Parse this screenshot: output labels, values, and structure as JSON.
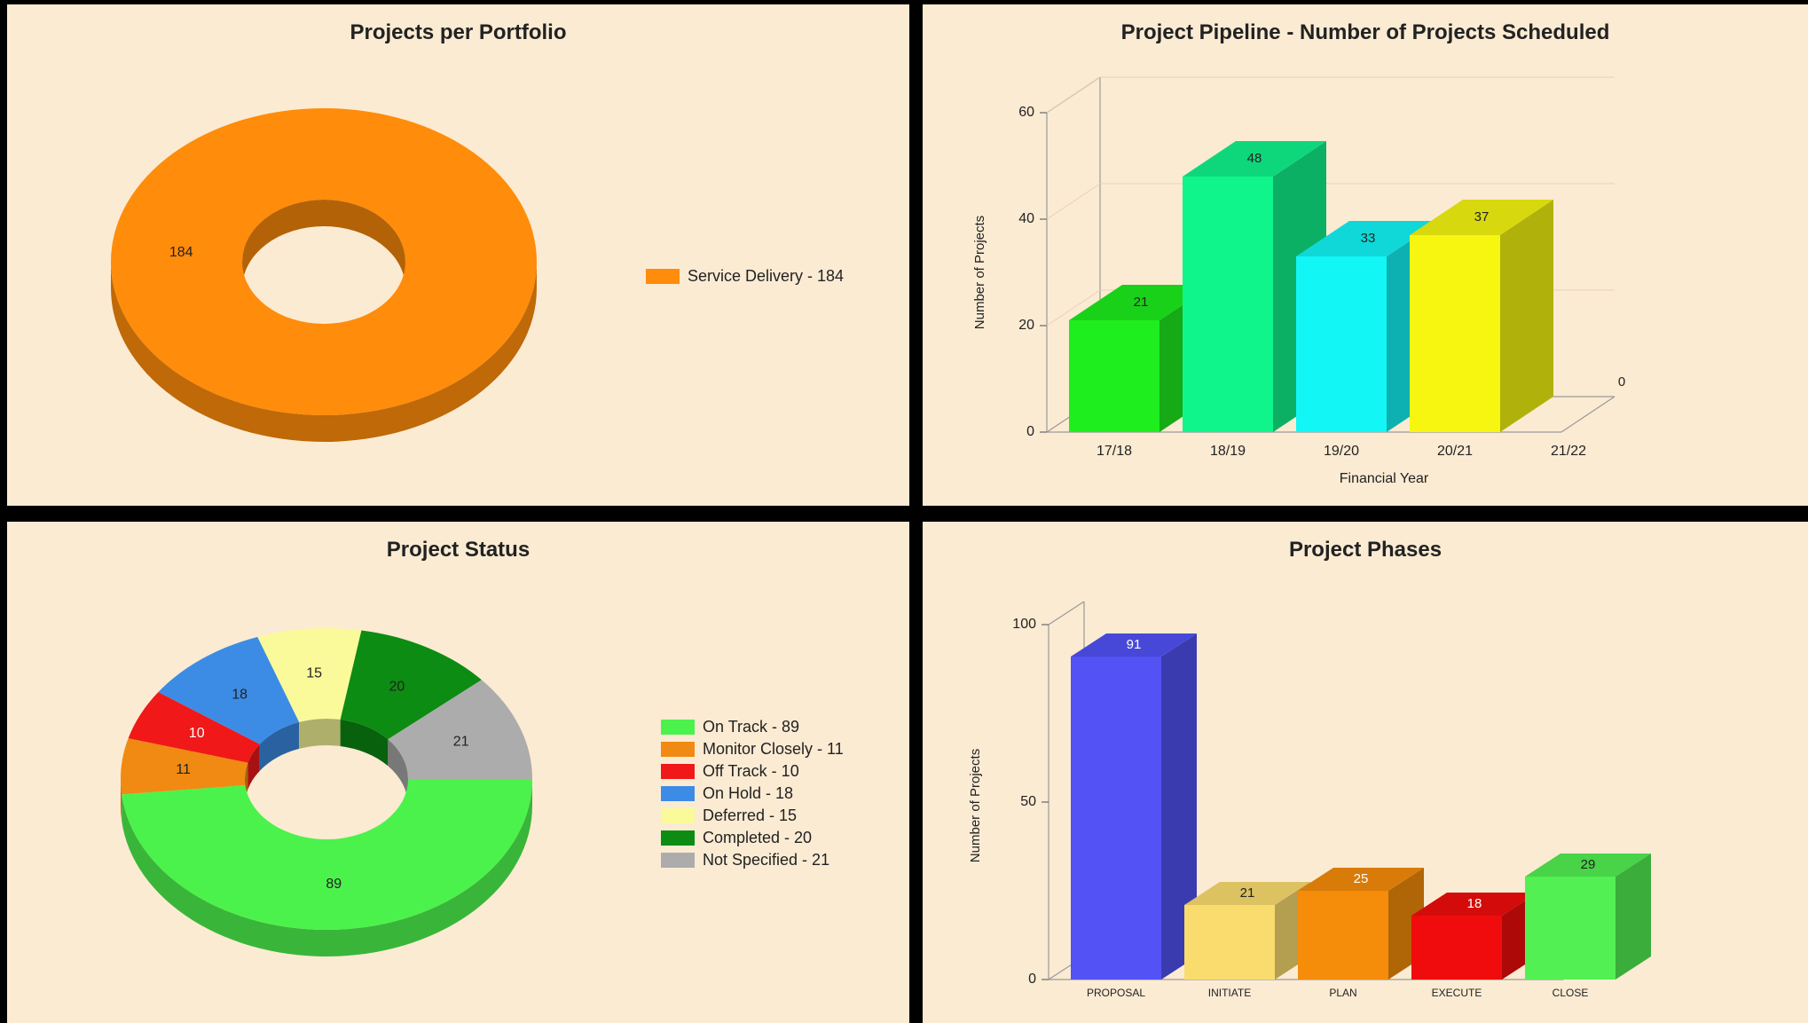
{
  "chart_data": [
    {
      "type": "pie",
      "title": "Projects per Portfolio",
      "slices": [
        {
          "label": "Service Delivery",
          "value": 184,
          "color": "#ff8c0a",
          "legend": "Service Delivery - 184"
        }
      ],
      "legend_placement": "right"
    },
    {
      "type": "bar",
      "title": "Project Pipeline - Number of Projects Scheduled",
      "xlabel": "Financial Year",
      "ylabel": "Number of Projects",
      "categories": [
        "17/18",
        "18/19",
        "19/20",
        "20/21",
        "21/22"
      ],
      "values": [
        21,
        48,
        33,
        37,
        0
      ],
      "colors": [
        "#1eee1e",
        "#10f48c",
        "#12f6f6",
        "#f6f610",
        "#d0d0d0"
      ],
      "ylim": [
        0,
        60
      ],
      "yticks": [
        "0",
        "20",
        "40",
        "60"
      ],
      "grid": true
    },
    {
      "type": "pie",
      "title": "Project Status",
      "slices": [
        {
          "label": "On Track",
          "value": 89,
          "color": "#4cf24c",
          "legend": "On Track - 89"
        },
        {
          "label": "Monitor Closely",
          "value": 11,
          "color": "#f08a12",
          "legend": "Monitor Closely - 11"
        },
        {
          "label": "Off Track",
          "value": 10,
          "color": "#f01818",
          "legend": "Off Track - 10"
        },
        {
          "label": "On Hold",
          "value": 18,
          "color": "#3c8ce6",
          "legend": "On Hold - 18"
        },
        {
          "label": "Deferred",
          "value": 15,
          "color": "#fafa9a",
          "legend": "Deferred - 15"
        },
        {
          "label": "Completed",
          "value": 20,
          "color": "#0c8c12",
          "legend": "Completed - 20"
        },
        {
          "label": "Not Specified",
          "value": 21,
          "color": "#acacac",
          "legend": "Not Specified - 21"
        }
      ],
      "legend_placement": "right"
    },
    {
      "type": "bar",
      "title": "Project Phases",
      "ylabel": "Number of Projects",
      "categories": [
        "PROPOSAL",
        "INITIATE",
        "PLAN",
        "EXECUTE",
        "CLOSE"
      ],
      "values": [
        91,
        21,
        25,
        18,
        29
      ],
      "colors": [
        "#5252f5",
        "#fadc6e",
        "#f58c0a",
        "#f00c0c",
        "#52f052"
      ],
      "ylim": [
        0,
        100
      ],
      "yticks": [
        "0",
        "50",
        "100"
      ],
      "grid": false
    }
  ]
}
